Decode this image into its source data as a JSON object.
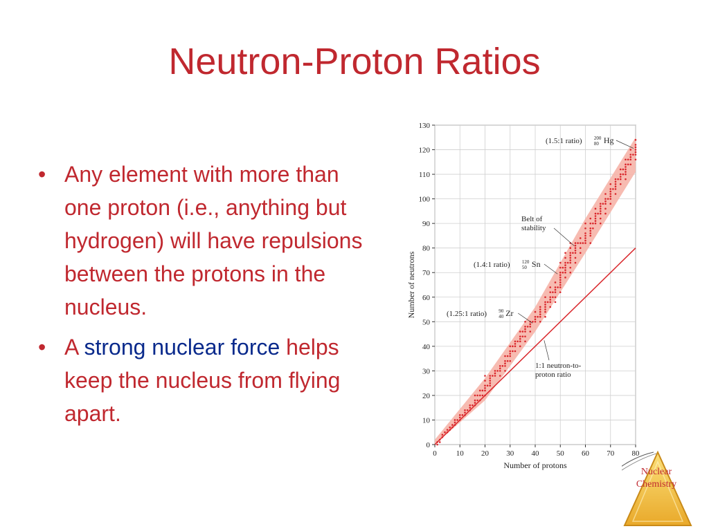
{
  "slide": {
    "title": "Neutron-Proton Ratios",
    "bullets": [
      {
        "text": "Any element with more than one proton (i.e., anything but hydrogen) will have repulsions between the protons in the nucleus."
      },
      {
        "prefix": "A ",
        "highlight": "strong nuclear force",
        "suffix": " helps keep the nucleus from flying apart."
      }
    ],
    "badge": {
      "line1": "Nuclear",
      "line2": "Chemistry",
      "color": "#f5c23a"
    },
    "colors": {
      "title": "#c0282f",
      "highlight": "#0a2a8c",
      "band": "#f6b4a8",
      "points": "#d9262b",
      "line": "#d9262b"
    }
  },
  "chart_data": {
    "type": "scatter",
    "xlabel": "Number of protons",
    "ylabel": "Number of neutrons",
    "xlim": [
      0,
      80
    ],
    "ylim": [
      0,
      130
    ],
    "xticks": [
      0,
      10,
      20,
      30,
      40,
      50,
      60,
      70,
      80
    ],
    "yticks": [
      0,
      10,
      20,
      30,
      40,
      50,
      60,
      70,
      80,
      90,
      100,
      110,
      120,
      130
    ],
    "grid": true,
    "band": {
      "label": "Belt of stability",
      "upper": [
        [
          0,
          2
        ],
        [
          20,
          27
        ],
        [
          40,
          56
        ],
        [
          60,
          92
        ],
        [
          80,
          125
        ]
      ],
      "lower": [
        [
          0,
          0
        ],
        [
          20,
          18
        ],
        [
          40,
          46
        ],
        [
          60,
          78
        ],
        [
          80,
          111
        ]
      ]
    },
    "reference_line": {
      "label": "1:1 neutron-to-proton ratio",
      "points": [
        [
          0,
          0
        ],
        [
          80,
          80
        ]
      ]
    },
    "annotations": [
      {
        "prefix": "(1.5:1 ratio)",
        "mass": "200",
        "atomic": "80",
        "symbol": "Hg",
        "x": 80,
        "y": 120
      },
      {
        "prefix": "(1.4:1 ratio)",
        "mass": "120",
        "atomic": "50",
        "symbol": "Sn",
        "x": 50,
        "y": 70
      },
      {
        "prefix": "(1.25:1 ratio)",
        "mass": "90",
        "atomic": "40",
        "symbol": "Zr",
        "x": 40,
        "y": 50
      },
      {
        "prefix": "Belt of",
        "line2": "stability",
        "x": 55,
        "y": 82
      },
      {
        "prefix": "1:1 neutron-to-",
        "line2": "proton ratio",
        "x": 43,
        "y": 43
      }
    ],
    "stable_nuclides": [
      [
        1,
        0
      ],
      [
        1,
        1
      ],
      [
        2,
        1
      ],
      [
        2,
        2
      ],
      [
        3,
        3
      ],
      [
        3,
        4
      ],
      [
        4,
        5
      ],
      [
        5,
        5
      ],
      [
        5,
        6
      ],
      [
        6,
        6
      ],
      [
        6,
        7
      ],
      [
        7,
        7
      ],
      [
        7,
        8
      ],
      [
        8,
        8
      ],
      [
        8,
        9
      ],
      [
        8,
        10
      ],
      [
        9,
        10
      ],
      [
        10,
        10
      ],
      [
        10,
        11
      ],
      [
        10,
        12
      ],
      [
        11,
        12
      ],
      [
        12,
        12
      ],
      [
        12,
        13
      ],
      [
        12,
        14
      ],
      [
        13,
        14
      ],
      [
        14,
        14
      ],
      [
        14,
        15
      ],
      [
        14,
        16
      ],
      [
        15,
        16
      ],
      [
        16,
        16
      ],
      [
        16,
        17
      ],
      [
        16,
        18
      ],
      [
        16,
        20
      ],
      [
        17,
        18
      ],
      [
        17,
        20
      ],
      [
        18,
        18
      ],
      [
        18,
        20
      ],
      [
        18,
        22
      ],
      [
        19,
        20
      ],
      [
        19,
        22
      ],
      [
        20,
        20
      ],
      [
        20,
        22
      ],
      [
        20,
        23
      ],
      [
        20,
        24
      ],
      [
        20,
        26
      ],
      [
        20,
        28
      ],
      [
        21,
        24
      ],
      [
        22,
        24
      ],
      [
        22,
        25
      ],
      [
        22,
        26
      ],
      [
        22,
        27
      ],
      [
        22,
        28
      ],
      [
        23,
        28
      ],
      [
        24,
        28
      ],
      [
        24,
        29
      ],
      [
        24,
        30
      ],
      [
        25,
        30
      ],
      [
        26,
        28
      ],
      [
        26,
        30
      ],
      [
        26,
        31
      ],
      [
        26,
        32
      ],
      [
        27,
        32
      ],
      [
        28,
        30
      ],
      [
        28,
        32
      ],
      [
        28,
        33
      ],
      [
        28,
        34
      ],
      [
        28,
        36
      ],
      [
        29,
        34
      ],
      [
        29,
        36
      ],
      [
        30,
        34
      ],
      [
        30,
        36
      ],
      [
        30,
        37
      ],
      [
        30,
        38
      ],
      [
        30,
        40
      ],
      [
        31,
        38
      ],
      [
        31,
        40
      ],
      [
        32,
        38
      ],
      [
        32,
        40
      ],
      [
        32,
        41
      ],
      [
        32,
        42
      ],
      [
        33,
        42
      ],
      [
        34,
        40
      ],
      [
        34,
        42
      ],
      [
        34,
        43
      ],
      [
        34,
        44
      ],
      [
        34,
        46
      ],
      [
        35,
        44
      ],
      [
        35,
        46
      ],
      [
        36,
        42
      ],
      [
        36,
        44
      ],
      [
        36,
        46
      ],
      [
        36,
        47
      ],
      [
        36,
        48
      ],
      [
        36,
        50
      ],
      [
        37,
        48
      ],
      [
        38,
        46
      ],
      [
        38,
        48
      ],
      [
        38,
        49
      ],
      [
        38,
        50
      ],
      [
        39,
        50
      ],
      [
        40,
        50
      ],
      [
        40,
        51
      ],
      [
        40,
        52
      ],
      [
        40,
        54
      ],
      [
        41,
        52
      ],
      [
        42,
        50
      ],
      [
        42,
        52
      ],
      [
        42,
        53
      ],
      [
        42,
        54
      ],
      [
        42,
        55
      ],
      [
        42,
        56
      ],
      [
        44,
        52
      ],
      [
        44,
        54
      ],
      [
        44,
        55
      ],
      [
        44,
        56
      ],
      [
        44,
        57
      ],
      [
        44,
        58
      ],
      [
        44,
        60
      ],
      [
        45,
        58
      ],
      [
        46,
        56
      ],
      [
        46,
        58
      ],
      [
        46,
        59
      ],
      [
        46,
        60
      ],
      [
        46,
        62
      ],
      [
        46,
        64
      ],
      [
        47,
        60
      ],
      [
        47,
        62
      ],
      [
        48,
        58
      ],
      [
        48,
        60
      ],
      [
        48,
        62
      ],
      [
        48,
        63
      ],
      [
        48,
        64
      ],
      [
        48,
        66
      ],
      [
        49,
        64
      ],
      [
        50,
        62
      ],
      [
        50,
        64
      ],
      [
        50,
        65
      ],
      [
        50,
        66
      ],
      [
        50,
        67
      ],
      [
        50,
        68
      ],
      [
        50,
        69
      ],
      [
        50,
        70
      ],
      [
        50,
        72
      ],
      [
        50,
        74
      ],
      [
        51,
        70
      ],
      [
        51,
        72
      ],
      [
        52,
        68
      ],
      [
        52,
        70
      ],
      [
        52,
        71
      ],
      [
        52,
        72
      ],
      [
        52,
        73
      ],
      [
        52,
        74
      ],
      [
        52,
        76
      ],
      [
        52,
        78
      ],
      [
        53,
        74
      ],
      [
        54,
        70
      ],
      [
        54,
        72
      ],
      [
        54,
        74
      ],
      [
        54,
        75
      ],
      [
        54,
        76
      ],
      [
        54,
        77
      ],
      [
        54,
        78
      ],
      [
        54,
        80
      ],
      [
        54,
        82
      ],
      [
        55,
        78
      ],
      [
        56,
        74
      ],
      [
        56,
        76
      ],
      [
        56,
        78
      ],
      [
        56,
        79
      ],
      [
        56,
        80
      ],
      [
        56,
        81
      ],
      [
        56,
        82
      ],
      [
        57,
        82
      ],
      [
        58,
        78
      ],
      [
        58,
        80
      ],
      [
        58,
        82
      ],
      [
        58,
        84
      ],
      [
        59,
        82
      ],
      [
        60,
        82
      ],
      [
        60,
        83
      ],
      [
        60,
        84
      ],
      [
        60,
        85
      ],
      [
        60,
        86
      ],
      [
        60,
        88
      ],
      [
        60,
        90
      ],
      [
        62,
        82
      ],
      [
        62,
        85
      ],
      [
        62,
        86
      ],
      [
        62,
        87
      ],
      [
        62,
        88
      ],
      [
        62,
        90
      ],
      [
        62,
        92
      ],
      [
        63,
        88
      ],
      [
        63,
        90
      ],
      [
        64,
        90
      ],
      [
        64,
        91
      ],
      [
        64,
        92
      ],
      [
        64,
        93
      ],
      [
        64,
        94
      ],
      [
        64,
        96
      ],
      [
        65,
        94
      ],
      [
        66,
        90
      ],
      [
        66,
        92
      ],
      [
        66,
        94
      ],
      [
        66,
        95
      ],
      [
        66,
        96
      ],
      [
        66,
        97
      ],
      [
        66,
        98
      ],
      [
        67,
        98
      ],
      [
        68,
        94
      ],
      [
        68,
        96
      ],
      [
        68,
        98
      ],
      [
        68,
        99
      ],
      [
        68,
        100
      ],
      [
        68,
        102
      ],
      [
        69,
        100
      ],
      [
        70,
        98
      ],
      [
        70,
        100
      ],
      [
        70,
        101
      ],
      [
        70,
        102
      ],
      [
        70,
        103
      ],
      [
        70,
        104
      ],
      [
        70,
        106
      ],
      [
        71,
        104
      ],
      [
        72,
        102
      ],
      [
        72,
        104
      ],
      [
        72,
        105
      ],
      [
        72,
        106
      ],
      [
        72,
        107
      ],
      [
        72,
        108
      ],
      [
        73,
        108
      ],
      [
        74,
        106
      ],
      [
        74,
        108
      ],
      [
        74,
        109
      ],
      [
        74,
        110
      ],
      [
        74,
        112
      ],
      [
        75,
        110
      ],
      [
        75,
        112
      ],
      [
        76,
        108
      ],
      [
        76,
        110
      ],
      [
        76,
        111
      ],
      [
        76,
        112
      ],
      [
        76,
        113
      ],
      [
        76,
        114
      ],
      [
        76,
        116
      ],
      [
        77,
        114
      ],
      [
        77,
        116
      ],
      [
        78,
        114
      ],
      [
        78,
        116
      ],
      [
        78,
        117
      ],
      [
        78,
        118
      ],
      [
        78,
        120
      ],
      [
        79,
        118
      ],
      [
        80,
        116
      ],
      [
        80,
        118
      ],
      [
        80,
        119
      ],
      [
        80,
        120
      ],
      [
        80,
        121
      ],
      [
        80,
        122
      ],
      [
        80,
        124
      ]
    ]
  }
}
